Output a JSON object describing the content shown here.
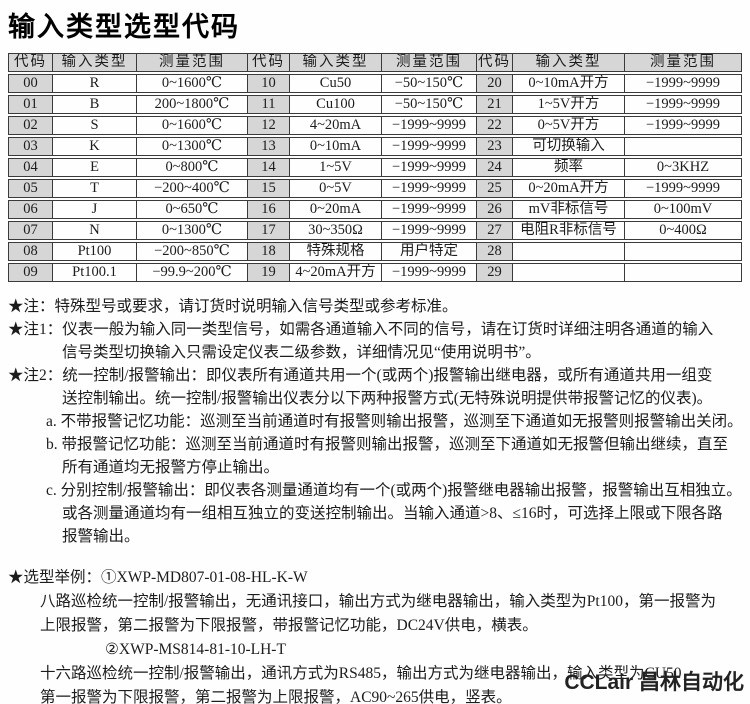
{
  "title": "输入类型选型代码",
  "table": {
    "headers": [
      "代码",
      "输入类型",
      "测量范围"
    ],
    "rows": [
      [
        "00",
        "R",
        "0~1600℃",
        "10",
        "Cu50",
        "−50~150℃",
        "20",
        "0~10mA开方",
        "−1999~9999"
      ],
      [
        "01",
        "B",
        "200~1800℃",
        "11",
        "Cu100",
        "−50~150℃",
        "21",
        "1~5V开方",
        "−1999~9999"
      ],
      [
        "02",
        "S",
        "0~1600℃",
        "12",
        "4~20mA",
        "−1999~9999",
        "22",
        "0~5V开方",
        "−1999~9999"
      ],
      [
        "03",
        "K",
        "0~1300℃",
        "13",
        "0~10mA",
        "−1999~9999",
        "23",
        "可切换输入",
        ""
      ],
      [
        "04",
        "E",
        "0~800℃",
        "14",
        "1~5V",
        "−1999~9999",
        "24",
        "频率",
        "0~3KHZ"
      ],
      [
        "05",
        "T",
        "−200~400℃",
        "15",
        "0~5V",
        "−1999~9999",
        "25",
        "0~20mA开方",
        "−1999~9999"
      ],
      [
        "06",
        "J",
        "0~650℃",
        "16",
        "0~20mA",
        "−1999~9999",
        "26",
        "mV非标信号",
        "0~100mV"
      ],
      [
        "07",
        "N",
        "0~1300℃",
        "17",
        "30~350Ω",
        "−1999~9999",
        "27",
        "电阻R非标信号",
        "0~400Ω"
      ],
      [
        "08",
        "Pt100",
        "−200~850℃",
        "18",
        "特殊规格",
        "用户特定",
        "28",
        "",
        ""
      ],
      [
        "09",
        "Pt100.1",
        "−99.9~200℃",
        "19",
        "4~20mA开方",
        "−1999~9999",
        "29",
        "",
        ""
      ]
    ]
  },
  "notes": {
    "lines": [
      {
        "cls": "ind0",
        "text": "★注：特殊型号或要求，请订货时说明输入信号类型或参考标准。"
      },
      {
        "cls": "ind0",
        "text": "★注1：仪表一般为输入同一类型信号，如需各通道输入不同的信号，请在订货时详细注明各通道的输入"
      },
      {
        "cls": "ind2",
        "text": "信号类型切换输入只需设定仪表二级参数，详细情况见“使用说明书”。"
      },
      {
        "cls": "ind0",
        "text": "★注2：统一控制/报警输出：即仪表所有通道共用一个(或两个)报警输出继电器，或所有通道共用一组变"
      },
      {
        "cls": "ind2",
        "text": "送控制输出。统一控制/报警输出仪表分以下两种报警方式(无特殊说明提供带报警记忆的仪表)。"
      },
      {
        "cls": "ind1",
        "text": "a. 不带报警记忆功能：巡测至当前通道时有报警则输出报警，巡测至下通道如无报警则报警输出关闭。"
      },
      {
        "cls": "ind1",
        "text": "b. 带报警记忆功能：巡测至当前通道时有报警则输出报警，巡测至下通道如无报警但输出继续，直至"
      },
      {
        "cls": "ind2",
        "text": "所有通道均无报警方停止输出。"
      },
      {
        "cls": "ind1",
        "text": "c. 分别控制/报警输出：即仪表各测量通道均有一个(或两个)报警继电器输出报警，报警输出互相独立。"
      },
      {
        "cls": "ind2",
        "text": "或各测量通道均有一组相互独立的变送控制输出。当输入通道>8、≤16时，可选择上限或下限各路"
      },
      {
        "cls": "ind2",
        "text": "报警输出。"
      }
    ]
  },
  "example": {
    "lines": [
      {
        "cls": "ind0",
        "text": "★选型举例：①XWP-MD807-01-08-HL-K-W"
      },
      {
        "cls": "indp",
        "text": "八路巡检统一控制/报警输出，无通讯接口，输出方式为继电器输出，输入类型为Pt100，第一报警为"
      },
      {
        "cls": "indp",
        "text": "上限报警，第二报警为下限报警，带报警记忆功能，DC24V供电，横表。"
      },
      {
        "cls": "indq",
        "text": "②XWP-MS814-81-10-LH-T"
      },
      {
        "cls": "indp",
        "text": "十六路巡检统一控制/报警输出，通讯方式为RS485，输出方式为继电器输出，输入类型为CU50，"
      },
      {
        "cls": "indp",
        "text": "第一报警为下限报警，第二报警为上限报警，AC90~265供电，竖表。"
      }
    ]
  },
  "logo": "CCLair 昌林自动化",
  "colors": {
    "header_bg": "#d6d6d6",
    "border": "#3a3a3a",
    "text": "#1c1c1c"
  }
}
